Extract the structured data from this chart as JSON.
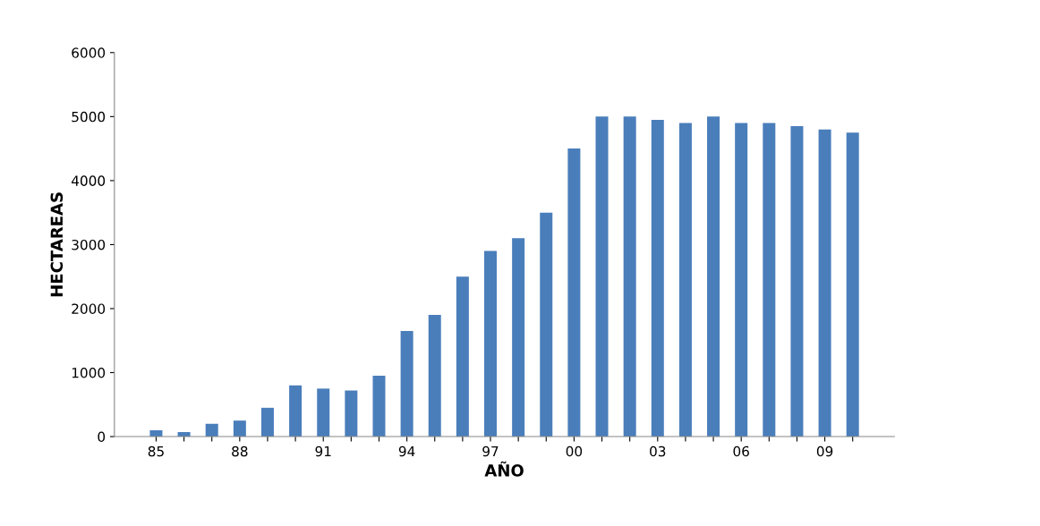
{
  "chart_data": {
    "type": "bar",
    "xlabel": "AÑO",
    "ylabel": "HECTAREAS",
    "categories": [
      "85",
      null,
      null,
      "88",
      null,
      null,
      "91",
      null,
      null,
      "94",
      null,
      null,
      "97",
      null,
      null,
      "00",
      null,
      null,
      "03",
      null,
      null,
      "06",
      null,
      null,
      "09",
      null
    ],
    "series": [
      {
        "color": "#4a7ebb",
        "values": [
          100,
          70,
          200,
          250,
          450,
          800,
          750,
          720,
          950,
          1650,
          1900,
          2500,
          2900,
          3100,
          3500,
          4500,
          5000,
          5000,
          4950,
          4900,
          5000,
          4900,
          4900,
          4850,
          4800,
          4750
        ]
      }
    ],
    "ylim": [
      0,
      6000
    ],
    "yticks": [
      0,
      1000,
      2000,
      3000,
      4000,
      5000,
      6000
    ],
    "grid": false
  }
}
